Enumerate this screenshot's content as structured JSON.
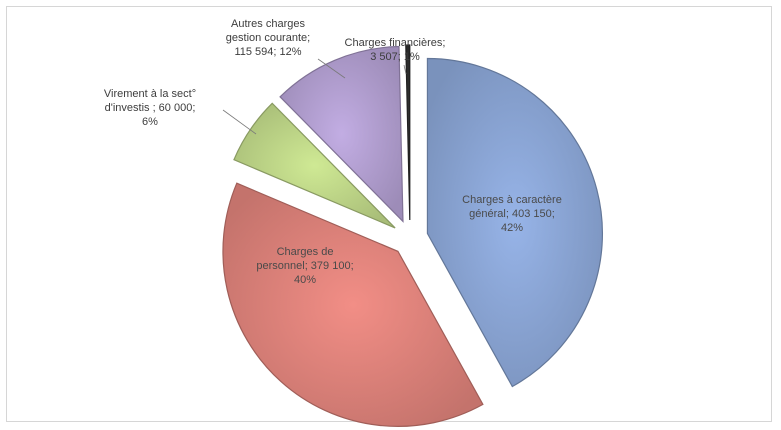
{
  "chart_data": {
    "type": "pie",
    "title": "",
    "exploded": true,
    "start_angle_deg_clockwise_from_top": 0,
    "slices": [
      {
        "name": "Charges à caractère général",
        "value": 403150,
        "percent": 42,
        "color": "#8eaadb",
        "label_lines": [
          "Charges à caractère",
          "général; 403 150;",
          "42%"
        ],
        "label_position": "inside"
      },
      {
        "name": "Charges de personnel",
        "value": 379100,
        "percent": 40,
        "color": "#e4867e",
        "label_lines": [
          "Charges de",
          "personnel; 379 100;",
          "40%"
        ],
        "label_position": "inside"
      },
      {
        "name": "Virement à la sect° d'investis",
        "value": 60000,
        "percent": 6,
        "color": "#c3dc8c",
        "label_lines": [
          "Virement à la sect°",
          "d'investis ; 60 000;",
          "6%"
        ],
        "label_position": "outside"
      },
      {
        "name": "Autres charges gestion courante",
        "value": 115594,
        "percent": 12,
        "color": "#b7a3d6",
        "label_lines": [
          "Autres charges",
          "gestion courante;",
          "115 594; 12%"
        ],
        "label_position": "outside"
      },
      {
        "name": "Charges financières",
        "value": 3507,
        "percent": 1,
        "color": "#2f2f2f",
        "label_lines": [
          "Charges financières;",
          "3 507; 1%"
        ],
        "label_position": "outside"
      }
    ]
  }
}
